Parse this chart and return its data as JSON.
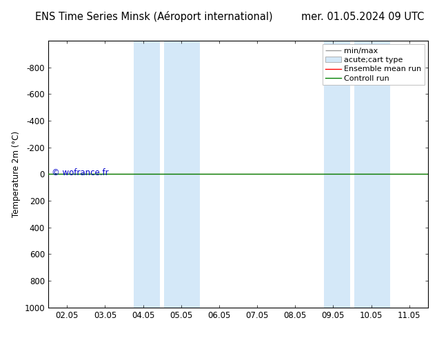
{
  "title_left": "ENS Time Series Minsk (Aéroport international)",
  "title_right": "mer. 01.05.2024 09 UTC",
  "ylabel": "Temperature 2m (°C)",
  "ylim_top": -1000,
  "ylim_bottom": 1000,
  "yticks": [
    -800,
    -600,
    -400,
    -200,
    0,
    200,
    400,
    600,
    800,
    1000
  ],
  "xtick_labels": [
    "02.05",
    "03.05",
    "04.05",
    "05.05",
    "06.05",
    "07.05",
    "08.05",
    "09.05",
    "10.05",
    "11.05"
  ],
  "xtick_positions": [
    0,
    1,
    2,
    3,
    4,
    5,
    6,
    7,
    8,
    9
  ],
  "xlim": [
    -0.5,
    9.5
  ],
  "blue_band_regions": [
    [
      1.75,
      2.45
    ],
    [
      2.55,
      3.5
    ],
    [
      6.75,
      7.45
    ],
    [
      7.55,
      8.5
    ]
  ],
  "band_color": "#d4e8f8",
  "ensemble_mean_color": "#ff0000",
  "control_run_color": "#008000",
  "minmax_color": "#999999",
  "background_color": "#ffffff",
  "watermark": "© wofrance.fr",
  "watermark_color": "#0000cc",
  "legend_entries": [
    "min/max",
    "acute;cart type",
    "Ensemble mean run",
    "Controll run"
  ],
  "legend_colors": [
    "#999999",
    "#d4e8f8",
    "#ff0000",
    "#008000"
  ],
  "title_fontsize": 10.5,
  "axis_fontsize": 8.5,
  "legend_fontsize": 8
}
